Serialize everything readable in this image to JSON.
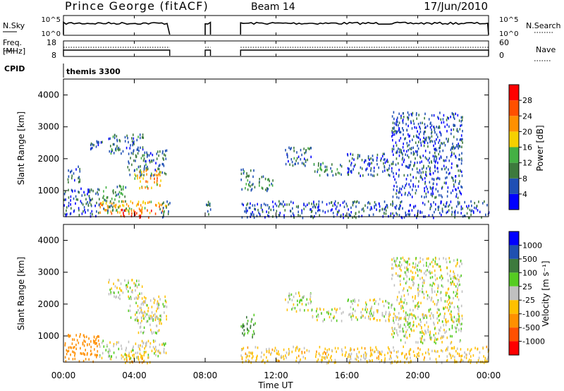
{
  "header": {
    "station": "Prince George (fitACF)",
    "beam": "Beam 14",
    "date": "17/Jun/2010"
  },
  "params": {
    "nsky_label": "N.Sky",
    "nsearch_label": "N.Search",
    "nsky_ticks": [
      "10^5",
      "10^0"
    ],
    "nsearch_ticks": [
      "10^5",
      "10^0"
    ],
    "freq_label": [
      "Freq.",
      "[MHz]"
    ],
    "freq_ticks": [
      "18",
      "8"
    ],
    "nave_label": "Nave",
    "nave_ticks": [
      "60",
      "0"
    ],
    "cpid_label": "CPID",
    "cpid_value": "themis 3300"
  },
  "axes": {
    "ylabel": "Slant Range [km]",
    "yticks": [
      "1000",
      "2000",
      "3000",
      "4000"
    ],
    "xlabel": "Time UT",
    "xticks": [
      "00:00",
      "04:00",
      "08:00",
      "12:00",
      "16:00",
      "20:00",
      "00:00"
    ]
  },
  "colorbars": {
    "power": {
      "label": "Power [dB]",
      "ticks": [
        "4",
        "8",
        "12",
        "16",
        "20",
        "24",
        "28"
      ],
      "colors": [
        "#0000ff",
        "#1f4fb4",
        "#3d7a3d",
        "#44b044",
        "#f5d000",
        "#ff9000",
        "#ff5000",
        "#ff0000"
      ]
    },
    "velocity": {
      "label": "Velocity [m s⁻¹]",
      "ticks": [
        "1000",
        "500",
        "100",
        "25",
        "-25",
        "-100",
        "-500",
        "-1000"
      ],
      "colors": [
        "#0000ff",
        "#2050b0",
        "#3d7a3d",
        "#55cc22",
        "#c0c0c0",
        "#ffc000",
        "#ff9000",
        "#ff5000",
        "#ff0000"
      ]
    }
  },
  "chart_data": [
    {
      "type": "heatmap",
      "title": "Power [dB]",
      "xlabel": "Time UT",
      "ylabel": "Slant Range [km]",
      "xlim": [
        0,
        24
      ],
      "ylim": [
        180,
        4500
      ],
      "data_gaps_hours": [
        [
          6.0,
          8.0
        ],
        [
          8.3,
          10.0
        ]
      ],
      "echo_regions": [
        {
          "t": [
            0.0,
            2.0
          ],
          "range": [
            200,
            1100
          ],
          "value": 6
        },
        {
          "t": [
            0.2,
            1.0
          ],
          "range": [
            1300,
            1800
          ],
          "value": 6
        },
        {
          "t": [
            1.3,
            2.3
          ],
          "range": [
            2300,
            2600
          ],
          "value": 6
        },
        {
          "t": [
            2.0,
            5.8
          ],
          "range": [
            300,
            700
          ],
          "value": 20
        },
        {
          "t": [
            2.2,
            3.6
          ],
          "range": [
            400,
            1200
          ],
          "value": 12
        },
        {
          "t": [
            3.2,
            5.0
          ],
          "range": [
            180,
            450
          ],
          "value": 28
        },
        {
          "t": [
            4.0,
            5.5
          ],
          "range": [
            1100,
            1700
          ],
          "value": 20
        },
        {
          "t": [
            3.6,
            5.8
          ],
          "range": [
            1500,
            2300
          ],
          "value": 8
        },
        {
          "t": [
            2.5,
            4.5
          ],
          "range": [
            2200,
            2800
          ],
          "value": 8
        },
        {
          "t": [
            5.4,
            6.0
          ],
          "range": [
            180,
            700
          ],
          "value": 8
        },
        {
          "t": [
            7.9,
            8.3
          ],
          "range": [
            200,
            800
          ],
          "value": 8
        },
        {
          "t": [
            10.0,
            24.0
          ],
          "range": [
            180,
            700
          ],
          "value": 6
        },
        {
          "t": [
            10.0,
            10.8
          ],
          "range": [
            1000,
            1700
          ],
          "value": 10
        },
        {
          "t": [
            11.0,
            11.8
          ],
          "range": [
            1000,
            1500
          ],
          "value": 10
        },
        {
          "t": [
            12.5,
            14.0
          ],
          "range": [
            1800,
            2400
          ],
          "value": 8
        },
        {
          "t": [
            14.0,
            15.8
          ],
          "range": [
            1500,
            1900
          ],
          "value": 10
        },
        {
          "t": [
            16.0,
            18.5
          ],
          "range": [
            1500,
            2200
          ],
          "value": 6
        },
        {
          "t": [
            18.5,
            22.5
          ],
          "range": [
            800,
            3500
          ],
          "value": 6
        }
      ]
    },
    {
      "type": "heatmap",
      "title": "Velocity [m s⁻¹]",
      "xlabel": "Time UT",
      "ylabel": "Slant Range [km]",
      "xlim": [
        0,
        24
      ],
      "ylim": [
        180,
        4500
      ],
      "echo_regions": [
        {
          "t": [
            0.0,
            2.0
          ],
          "range": [
            200,
            1100
          ],
          "value": -200
        },
        {
          "t": [
            2.0,
            5.8
          ],
          "range": [
            300,
            900
          ],
          "value": 0
        },
        {
          "t": [
            3.2,
            5.0
          ],
          "range": [
            180,
            450
          ],
          "value": -100
        },
        {
          "t": [
            4.0,
            5.5
          ],
          "range": [
            1100,
            1700
          ],
          "value": 0
        },
        {
          "t": [
            3.6,
            5.8
          ],
          "range": [
            1500,
            2300
          ],
          "value": 0
        },
        {
          "t": [
            2.5,
            4.5
          ],
          "range": [
            2200,
            2800
          ],
          "value": 0
        },
        {
          "t": [
            10.0,
            24.0
          ],
          "range": [
            180,
            700
          ],
          "value": -50
        },
        {
          "t": [
            10.0,
            10.8
          ],
          "range": [
            1000,
            1700
          ],
          "value": 100
        },
        {
          "t": [
            12.5,
            14.0
          ],
          "range": [
            1800,
            2400
          ],
          "value": 0
        },
        {
          "t": [
            14.0,
            15.8
          ],
          "range": [
            1500,
            1900
          ],
          "value": 0
        },
        {
          "t": [
            16.0,
            18.5
          ],
          "range": [
            1500,
            2200
          ],
          "value": 0
        },
        {
          "t": [
            18.5,
            22.5
          ],
          "range": [
            800,
            3500
          ],
          "value": 0
        }
      ]
    }
  ]
}
